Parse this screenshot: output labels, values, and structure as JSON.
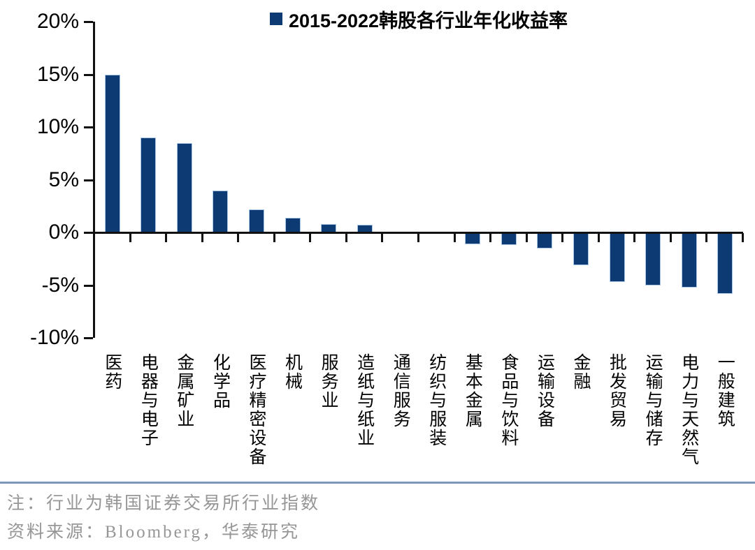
{
  "colors": {
    "bar": "#0d3a73",
    "bar_border": "#a9c7e6",
    "axis": "#111111",
    "divider": "#7d97b6",
    "note_text": "#969696"
  },
  "notes": {
    "line1": "注：行业为韩国证券交易所行业指数",
    "line2": "资料来源：Bloomberg，华泰研究"
  },
  "chart_data": {
    "type": "bar",
    "title": "2015-2022韩股各行业年化收益率",
    "legend_position": "top",
    "grid": false,
    "categories": [
      "医药",
      "电器与电子",
      "金属矿业",
      "化学品",
      "医疗精密设备",
      "机械",
      "服务业",
      "造纸与纸业",
      "通信服务",
      "纺织与服装",
      "基本金属",
      "食品与饮料",
      "运输设备",
      "金融",
      "批发贸易",
      "运输与储存",
      "电力与天然气",
      "一般建筑"
    ],
    "values": [
      15.0,
      9.0,
      8.5,
      4.0,
      2.2,
      1.4,
      0.8,
      0.7,
      0.0,
      0.0,
      -1.1,
      -1.2,
      -1.5,
      -3.1,
      -4.7,
      -5.0,
      -5.2,
      -5.8
    ],
    "ylabel": "",
    "xlabel": "",
    "ylim": [
      -10,
      20
    ],
    "ytick_values": [
      20,
      15,
      10,
      5,
      0,
      -5,
      -10
    ],
    "ytick_labels": [
      "20%",
      "15%",
      "10%",
      "5%",
      "0%",
      "-5%",
      "-10%"
    ]
  }
}
